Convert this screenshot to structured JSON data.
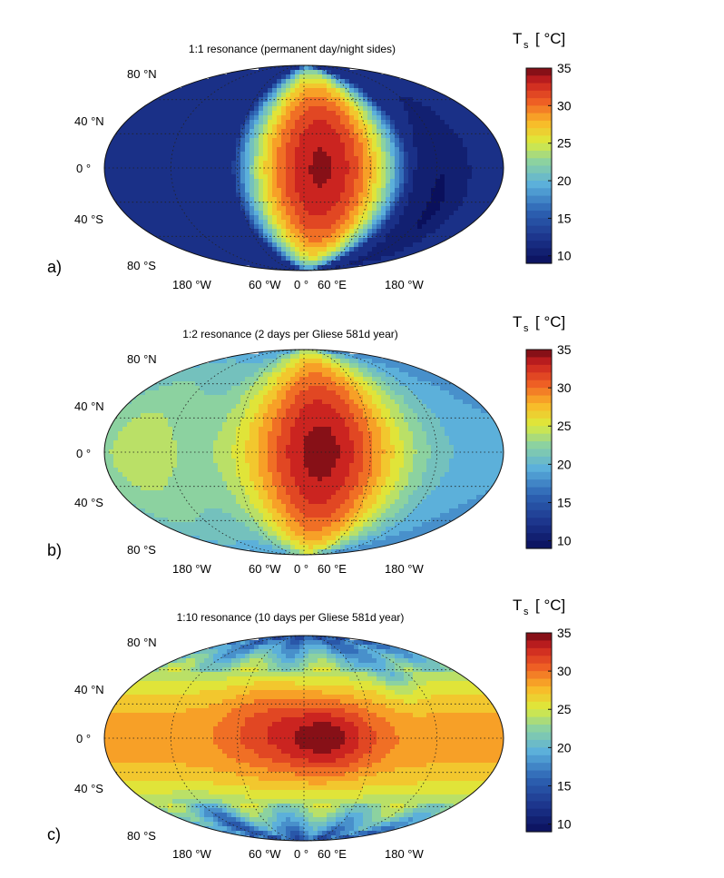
{
  "chart_data": [
    {
      "type": "heatmap",
      "panel_label": "a)",
      "title": "1:1 resonance (permanent day/night sides)",
      "colorbar": {
        "label": "T",
        "label_sub": "s",
        "label_unit": "[ °C]",
        "ticks": [
          "35",
          "30",
          "25",
          "20",
          "15",
          "10"
        ],
        "range": [
          9,
          35
        ]
      },
      "lat_ticks": [
        "80 °N",
        "40 °N",
        "0 °",
        "40 °S",
        "80 °S"
      ],
      "lon_ticks": [
        "180 °W",
        "60 °W",
        "0 °",
        "60 °E",
        "180 °W"
      ],
      "field": {
        "base": 11.5,
        "hot_peak": 34,
        "hot_center": [
          15,
          0
        ],
        "hot_radius_lon": 80,
        "hot_radius_lat": 92,
        "cold_spot": [
          125,
          -20
        ],
        "cold_value": 9.5
      }
    },
    {
      "type": "heatmap",
      "panel_label": "b)",
      "title": "1:2 resonance (2 days per Gliese 581d year)",
      "colorbar": {
        "label": "T",
        "label_sub": "s",
        "label_unit": "[ °C]",
        "ticks": [
          "35",
          "30",
          "25",
          "20",
          "15",
          "10"
        ],
        "range": [
          9,
          35
        ]
      },
      "lat_ticks": [
        "80 °N",
        "40 °N",
        "0 °",
        "40 °S",
        "80 °S"
      ],
      "lon_ticks": [
        "180 °W",
        "60 °W",
        "0 °",
        "60 °E",
        "180 °W"
      ],
      "field": {
        "base": 19,
        "hot_peak": 34.5,
        "hot_center": [
          15,
          0
        ],
        "hot_radius_lon": 95,
        "hot_radius_lat": 110,
        "warm_west": [
          -150,
          0
        ],
        "warm_value": 24
      }
    },
    {
      "type": "heatmap",
      "panel_label": "c)",
      "title": "1:10 resonance (10 days per Gliese 581d year)",
      "colorbar": {
        "label": "T",
        "label_sub": "s",
        "label_unit": "[ °C]",
        "ticks": [
          "35",
          "30",
          "25",
          "20",
          "15",
          "10"
        ],
        "range": [
          9,
          35
        ]
      },
      "lat_ticks": [
        "80 °N",
        "40 °N",
        "0 °",
        "40 °S",
        "80 °S"
      ],
      "lon_ticks": [
        "180 °W",
        "60 °W",
        "0 °",
        "60 °E",
        "180 °W"
      ],
      "field": {
        "equator_value": 28.5,
        "pole_value": 14,
        "hot_peak": 35,
        "hot_center": [
          20,
          0
        ]
      }
    }
  ]
}
